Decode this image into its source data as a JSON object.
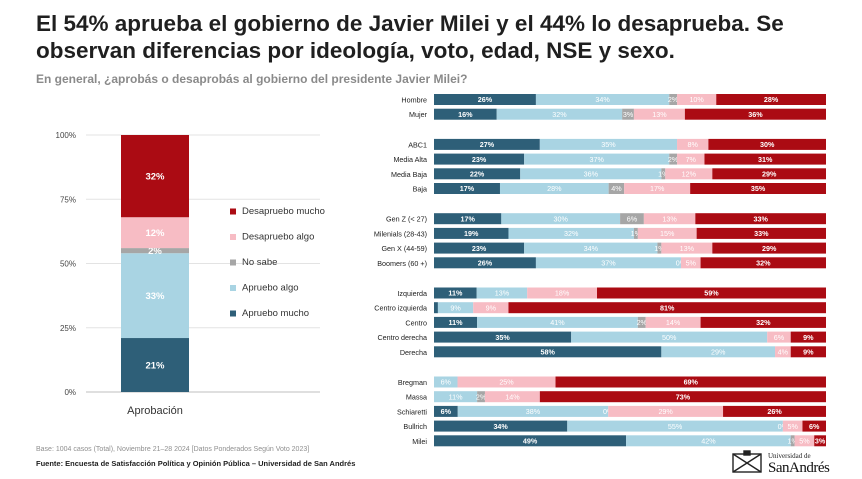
{
  "header": {
    "title": "El 54% aprueba el gobierno de Javier Milei y el 44% lo desaprueba.  Se observan diferencias por ideología, voto, edad, NSE y sexo.",
    "subtitle": "En general, ¿aprobás o desaprobás al gobierno del presidente Javier Milei?"
  },
  "footer": {
    "base": "Base: 1004 casos (Total), Noviembre 21–28 2024 [Datos Ponderados Según Voto 2023]",
    "source": "Fuente: Encuesta de Satisfacción Política y Opinión Pública – Universidad de San Andrés",
    "logo_small": "Universidad de",
    "logo_big": "SanAndrés"
  },
  "colors": {
    "Apruebo mucho": "#2e5f78",
    "Apruebo algo": "#a9d4e3",
    "No sabe": "#a6a6a6",
    "Desapruebo algo": "#f7bcc4",
    "Desapruebo mucho": "#ab0b13"
  },
  "chart_data": [
    {
      "type": "bar",
      "stacked": true,
      "orientation": "vertical",
      "categories": [
        "Aprobación"
      ],
      "ylim": [
        0,
        100
      ],
      "yticks": [
        "0%",
        "25%",
        "50%",
        "75%",
        "100%"
      ],
      "legend": {
        "placement": "right",
        "order": [
          "Desapruebo mucho",
          "Desapruebo algo",
          "No sabe",
          "Apruebo algo",
          "Apruebo mucho"
        ]
      },
      "series": [
        {
          "name": "Apruebo mucho",
          "values": [
            21
          ],
          "labels": [
            "21%"
          ]
        },
        {
          "name": "Apruebo algo",
          "values": [
            33
          ],
          "labels": [
            "33%"
          ]
        },
        {
          "name": "No sabe",
          "values": [
            2
          ],
          "labels": [
            "2%"
          ]
        },
        {
          "name": "Desapruebo algo",
          "values": [
            12
          ],
          "labels": [
            "12%"
          ]
        },
        {
          "name": "Desapruebo mucho",
          "values": [
            32
          ],
          "labels": [
            "32%"
          ]
        }
      ]
    },
    {
      "type": "bar",
      "stacked": true,
      "orientation": "horizontal",
      "xlim": [
        0,
        100
      ],
      "series_order": [
        "Apruebo mucho",
        "Apruebo algo",
        "No sabe",
        "Desapruebo algo",
        "Desapruebo mucho"
      ],
      "groups": [
        {
          "rows": [
            {
              "label": "Hombre",
              "values": [
                26,
                34,
                2,
                10,
                28
              ],
              "labels": [
                "26%",
                "34%",
                "2%",
                "10%",
                "28%"
              ]
            },
            {
              "label": "Mujer",
              "values": [
                16,
                32,
                3,
                13,
                36
              ],
              "labels": [
                "16%",
                "32%",
                "3%",
                "13%",
                "36%"
              ]
            }
          ]
        },
        {
          "rows": [
            {
              "label": "ABC1",
              "values": [
                27,
                35,
                0,
                8,
                30
              ],
              "labels": [
                "27%",
                "35%",
                "",
                "8%",
                "30%"
              ]
            },
            {
              "label": "Media Alta",
              "values": [
                23,
                37,
                2,
                7,
                31
              ],
              "labels": [
                "23%",
                "37%",
                "2%",
                "7%",
                "31%"
              ]
            },
            {
              "label": "Media Baja",
              "values": [
                22,
                36,
                1,
                12,
                29
              ],
              "labels": [
                "22%",
                "36%",
                "1%",
                "12%",
                "29%"
              ]
            },
            {
              "label": "Baja",
              "values": [
                17,
                28,
                4,
                17,
                35
              ],
              "labels": [
                "17%",
                "28%",
                "4%",
                "17%",
                "35%"
              ]
            }
          ]
        },
        {
          "rows": [
            {
              "label": "Gen Z (< 27)",
              "values": [
                17,
                30,
                6,
                13,
                33
              ],
              "labels": [
                "17%",
                "30%",
                "6%",
                "13%",
                "33%"
              ]
            },
            {
              "label": "Milenials (28-43)",
              "values": [
                19,
                32,
                1,
                15,
                33
              ],
              "labels": [
                "19%",
                "32%",
                "1%",
                "15%",
                "33%"
              ]
            },
            {
              "label": "Gen X (44-59)",
              "values": [
                23,
                34,
                1,
                13,
                29
              ],
              "labels": [
                "23%",
                "34%",
                "1%",
                "13%",
                "29%"
              ]
            },
            {
              "label": "Boomers (60 +)",
              "values": [
                26,
                37,
                0,
                5,
                32
              ],
              "labels": [
                "26%",
                "37%",
                "0%",
                "5%",
                "32%"
              ]
            }
          ]
        },
        {
          "rows": [
            {
              "label": "Izquierda",
              "values": [
                11,
                13,
                0,
                18,
                59
              ],
              "labels": [
                "11%",
                "13%",
                "",
                "18%",
                "59%"
              ]
            },
            {
              "label": "Centro izquierda",
              "values": [
                1,
                9,
                0,
                9,
                81
              ],
              "labels": [
                "",
                "9%",
                "",
                "9%",
                "81%"
              ]
            },
            {
              "label": "Centro",
              "values": [
                11,
                41,
                2,
                14,
                32
              ],
              "labels": [
                "11%",
                "41%",
                "2%",
                "14%",
                "32%"
              ]
            },
            {
              "label": "Centro derecha",
              "values": [
                35,
                50,
                0,
                6,
                9
              ],
              "labels": [
                "35%",
                "50%",
                "",
                "6%",
                "9%"
              ]
            },
            {
              "label": "Derecha",
              "values": [
                58,
                29,
                0,
                4,
                9
              ],
              "labels": [
                "58%",
                "29%",
                "",
                "4%",
                "9%"
              ]
            }
          ]
        },
        {
          "rows": [
            {
              "label": "Bregman",
              "values": [
                0,
                6,
                0,
                25,
                69
              ],
              "labels": [
                "",
                "6%",
                "",
                "25%",
                "69%"
              ]
            },
            {
              "label": "Massa",
              "values": [
                0,
                11,
                2,
                14,
                73
              ],
              "labels": [
                "",
                "11%",
                "2%",
                "14%",
                "73%"
              ]
            },
            {
              "label": "Schiaretti",
              "values": [
                6,
                38,
                0,
                29,
                26
              ],
              "labels": [
                "6%",
                "38%",
                "0%",
                "29%",
                "26%"
              ]
            },
            {
              "label": "Bullrich",
              "values": [
                34,
                55,
                0,
                5,
                6
              ],
              "labels": [
                "34%",
                "55%",
                "0%",
                "5%",
                "6%"
              ]
            },
            {
              "label": "Milei",
              "values": [
                49,
                42,
                1,
                5,
                3
              ],
              "labels": [
                "49%",
                "42%",
                "1%",
                "5%",
                "3%"
              ]
            }
          ]
        }
      ]
    }
  ]
}
